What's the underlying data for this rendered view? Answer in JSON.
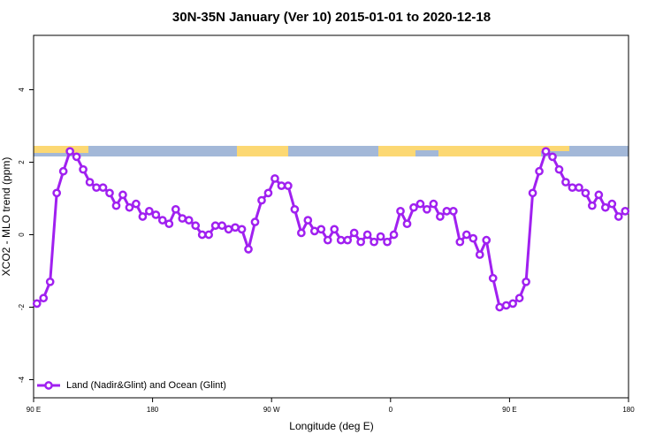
{
  "chart_data": {
    "type": "line",
    "title": "30N-35N January (Ver 10)   2015-01-01 to 2020-12-18",
    "x_label": "Longitude (deg E)",
    "y_label": "XCO2 - MLO trend (ppm)",
    "xlim": [
      90,
      540
    ],
    "ylim": [
      -4.5,
      5.5
    ],
    "xticks": [
      {
        "value": 90,
        "label": "90 E"
      },
      180,
      {
        "value": 270,
        "label": "90 W"
      },
      {
        "value": 360,
        "label": "0"
      },
      {
        "value": 450,
        "label": "90 E"
      },
      {
        "value": 540,
        "label": "180"
      }
    ],
    "yticks": [
      -4,
      -2,
      0,
      2,
      4
    ],
    "legend": "bottomleft",
    "x": [
      92.5,
      97.5,
      102.5,
      107.5,
      112.5,
      117.5,
      122.5,
      127.5,
      132.5,
      137.5,
      142.5,
      147.5,
      152.5,
      157.5,
      162.5,
      167.5,
      172.5,
      177.5,
      182.5,
      187.5,
      192.5,
      197.5,
      202.5,
      207.5,
      212.5,
      217.5,
      222.5,
      227.5,
      232.5,
      237.5,
      242.5,
      247.5,
      252.5,
      257.5,
      262.5,
      267.5,
      272.5,
      277.5,
      282.5,
      287.5,
      292.5,
      297.5,
      302.5,
      307.5,
      312.5,
      317.5,
      322.5,
      327.5,
      332.5,
      337.5,
      342.5,
      347.5,
      352.5,
      357.5,
      362.5,
      367.5,
      372.5,
      377.5,
      382.5,
      387.5,
      392.5,
      397.5,
      402.5,
      407.5,
      412.5,
      417.5,
      422.5,
      427.5,
      432.5,
      437.5,
      442.5,
      447.5,
      452.5,
      457.5,
      462.5,
      467.5,
      472.5,
      477.5,
      482.5,
      487.5,
      492.5,
      497.5,
      502.5,
      507.5,
      512.5,
      517.5,
      522.5,
      527.5,
      532.5,
      537.5
    ],
    "series": [
      {
        "name": "Land (Nadir&Glint) and Ocean (Glint)",
        "color": "#a020f0",
        "values": [
          -1.9,
          -1.75,
          -1.3,
          1.15,
          1.75,
          2.3,
          2.15,
          1.8,
          1.45,
          1.3,
          1.3,
          1.15,
          0.8,
          1.1,
          0.75,
          0.85,
          0.5,
          0.65,
          0.55,
          0.4,
          0.3,
          0.7,
          0.45,
          0.4,
          0.25,
          0,
          0,
          0.25,
          0.25,
          0.15,
          0.2,
          0.15,
          -0.4,
          0.35,
          0.95,
          1.15,
          1.55,
          1.35,
          1.35,
          0.7,
          0.05,
          0.4,
          0.1,
          0.15,
          -0.15,
          0.15,
          -0.15,
          -0.15,
          0.05,
          -0.2,
          0,
          -0.2,
          -0.05,
          -0.2,
          0,
          0.65,
          0.3,
          0.75,
          0.85,
          0.7,
          0.85,
          0.5,
          0.65,
          0.65,
          -0.2,
          0,
          -0.1,
          -0.55,
          -0.15,
          -1.2,
          -2,
          -1.95,
          -1.9,
          -1.75,
          -1.3,
          1.15,
          1.75,
          2.3,
          2.15,
          1.8,
          1.45,
          1.3,
          1.3,
          1.15,
          0.8,
          1.1,
          0.75,
          0.85,
          0.5,
          0.65
        ]
      }
    ]
  }
}
